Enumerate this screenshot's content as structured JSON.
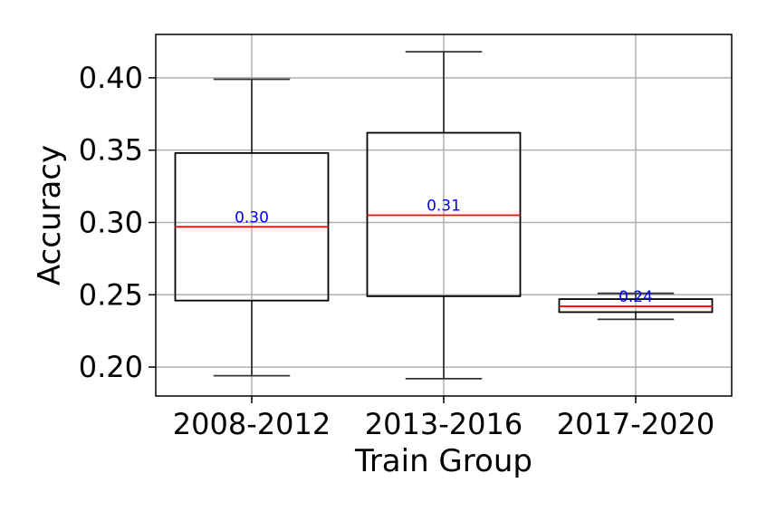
{
  "chart_data": {
    "type": "box",
    "categories": [
      "2008-2012",
      "2013-2016",
      "2017-2020"
    ],
    "boxes": [
      {
        "name": "2008-2012",
        "whisker_low": 0.194,
        "q1": 0.246,
        "median": 0.297,
        "q3": 0.348,
        "whisker_high": 0.399,
        "median_label": "0.30"
      },
      {
        "name": "2013-2016",
        "whisker_low": 0.192,
        "q1": 0.249,
        "median": 0.305,
        "q3": 0.362,
        "whisker_high": 0.418,
        "median_label": "0.31"
      },
      {
        "name": "2017-2020",
        "whisker_low": 0.233,
        "q1": 0.238,
        "median": 0.242,
        "q3": 0.247,
        "whisker_high": 0.251,
        "median_label": "0.24"
      }
    ],
    "xlabel": "Train Group",
    "ylabel": "Accuracy",
    "ylim": [
      0.18,
      0.43
    ],
    "yticks": [
      0.2,
      0.25,
      0.3,
      0.35,
      0.4
    ],
    "ytick_labels": [
      "0.20",
      "0.25",
      "0.30",
      "0.35",
      "0.40"
    ],
    "grid": true,
    "colors": {
      "box_edge": "#000000",
      "whisker": "#333333",
      "median_line": "#ff0000",
      "median_text": "#0000ff",
      "grid": "#b0b0b0"
    }
  }
}
